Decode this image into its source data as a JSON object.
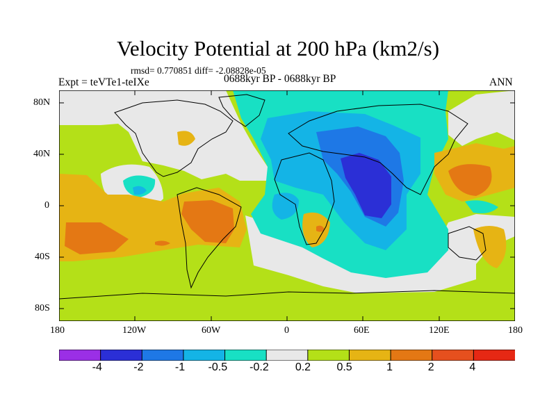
{
  "title": "Velocity Potential at 200 hPa (km2/s)",
  "stats": "rmsd= 0.770851 diff= -2.08828e-05",
  "experiment": "Expt = teVTe1-teIXe",
  "period": "0688kyr BP - 0688kyr BP",
  "season": "ANN",
  "y_ticks": [
    "80N",
    "40N",
    "0",
    "40S",
    "80S"
  ],
  "x_ticks": [
    "180",
    "120W",
    "60W",
    "0",
    "60E",
    "120E",
    "180"
  ],
  "colorbar": {
    "colors": [
      "#9b2fe6",
      "#2b2fd6",
      "#1e78e6",
      "#14b4e6",
      "#18e0c4",
      "#e8e8e8",
      "#b4e018",
      "#e6b414",
      "#e47814",
      "#e6501e",
      "#e62814"
    ],
    "labels": [
      "-4",
      "-2",
      "-1",
      "-0.5",
      "-0.2",
      "0.2",
      "0.5",
      "1",
      "2",
      "4"
    ]
  },
  "palette": {
    "neg_strong": "#2b2fd6",
    "neg_mid": "#1e78e6",
    "neg_light": "#14b4e6",
    "neg_weak": "#18e0c4",
    "neutral": "#e8e8e8",
    "pos_weak": "#b4e018",
    "pos_light": "#e6b414",
    "pos_mid": "#e47814"
  }
}
